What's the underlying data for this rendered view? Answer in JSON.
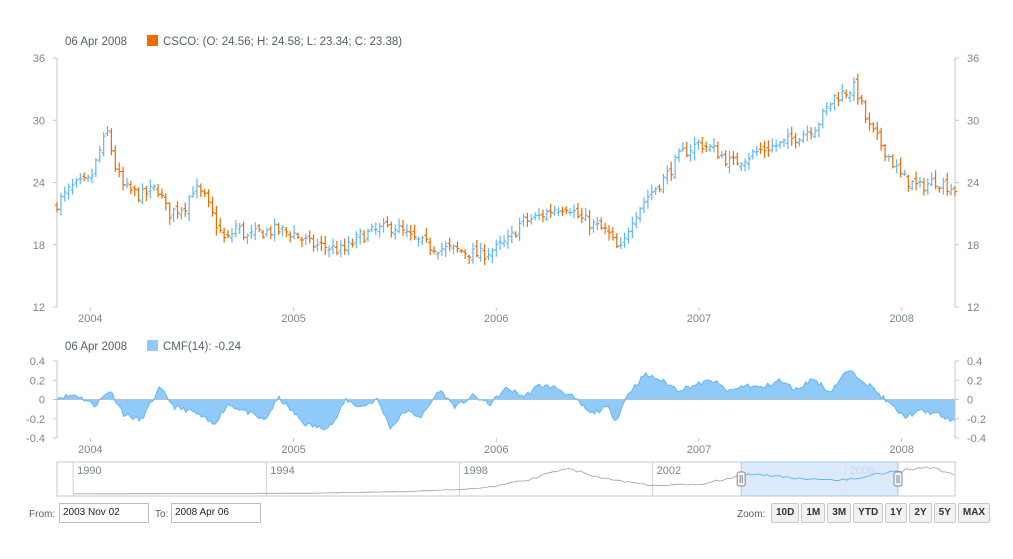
{
  "chart_data": [
    {
      "type": "ohlc",
      "legend": {
        "date": "06 Apr 2008",
        "text": "CSCO: (O: 24.56; H: 24.58; L: 23.34; C: 23.38)"
      },
      "colors": {
        "rising": "#64b5f6",
        "falling": "#ef6c00"
      },
      "ylim": [
        12,
        36
      ],
      "yticks": [
        "36",
        "30",
        "24",
        "18",
        "12"
      ],
      "xticks": [
        {
          "label": "2004",
          "date": "2004-01-01"
        },
        {
          "label": "2005",
          "date": "2005-01-01"
        },
        {
          "label": "2006",
          "date": "2006-01-01"
        },
        {
          "label": "2007",
          "date": "2007-01-01"
        },
        {
          "label": "2008",
          "date": "2008-01-01"
        }
      ],
      "xrange": [
        "2003-11-02",
        "2008-04-06"
      ],
      "close_trend": [
        [
          "2003-11-02",
          22.0
        ],
        [
          "2003-12-01",
          23.6
        ],
        [
          "2004-01-01",
          24.2
        ],
        [
          "2004-01-20",
          27.4
        ],
        [
          "2004-02-01",
          28.8
        ],
        [
          "2004-02-15",
          25.5
        ],
        [
          "2004-03-01",
          23.5
        ],
        [
          "2004-04-01",
          22.7
        ],
        [
          "2004-05-01",
          23.5
        ],
        [
          "2004-05-20",
          21.0
        ],
        [
          "2004-06-20",
          21.8
        ],
        [
          "2004-07-05",
          23.5
        ],
        [
          "2004-07-25",
          22.5
        ],
        [
          "2004-08-15",
          20.0
        ],
        [
          "2004-09-01",
          18.2
        ],
        [
          "2004-09-20",
          19.8
        ],
        [
          "2004-10-10",
          18.7
        ],
        [
          "2004-11-01",
          19.2
        ],
        [
          "2004-12-01",
          19.4
        ],
        [
          "2005-01-01",
          19.1
        ],
        [
          "2005-02-01",
          18.0
        ],
        [
          "2005-03-01",
          17.8
        ],
        [
          "2005-04-01",
          17.4
        ],
        [
          "2005-05-01",
          18.8
        ],
        [
          "2005-06-01",
          19.4
        ],
        [
          "2005-07-01",
          19.8
        ],
        [
          "2005-08-01",
          18.6
        ],
        [
          "2005-09-01",
          17.9
        ],
        [
          "2005-10-01",
          17.6
        ],
        [
          "2005-11-01",
          17.4
        ],
        [
          "2005-12-01",
          17.0
        ],
        [
          "2006-01-01",
          17.6
        ],
        [
          "2006-01-25",
          18.5
        ],
        [
          "2006-02-15",
          20.2
        ],
        [
          "2006-03-15",
          20.6
        ],
        [
          "2006-04-15",
          21.5
        ],
        [
          "2006-05-10",
          21.8
        ],
        [
          "2006-06-01",
          20.5
        ],
        [
          "2006-06-25",
          19.9
        ],
        [
          "2006-07-20",
          19.2
        ],
        [
          "2006-08-05",
          17.7
        ],
        [
          "2006-08-15",
          17.5
        ],
        [
          "2006-09-01",
          20.5
        ],
        [
          "2006-10-01",
          22.7
        ],
        [
          "2006-11-01",
          24.5
        ],
        [
          "2006-12-01",
          26.8
        ],
        [
          "2007-01-01",
          27.8
        ],
        [
          "2007-02-01",
          27.0
        ],
        [
          "2007-03-01",
          25.8
        ],
        [
          "2007-04-01",
          26.6
        ],
        [
          "2007-05-01",
          27.3
        ],
        [
          "2007-06-01",
          27.7
        ],
        [
          "2007-07-01",
          28.6
        ],
        [
          "2007-08-01",
          29.5
        ],
        [
          "2007-09-01",
          32.2
        ],
        [
          "2007-10-10",
          33.2
        ],
        [
          "2007-11-01",
          29.5
        ],
        [
          "2007-12-01",
          27.2
        ],
        [
          "2008-01-01",
          24.5
        ],
        [
          "2008-02-01",
          23.5
        ],
        [
          "2008-03-01",
          24.2
        ],
        [
          "2008-04-06",
          23.38
        ]
      ]
    },
    {
      "type": "area",
      "legend": {
        "date": "06 Apr 2008",
        "text": "CMF(14): -0.24"
      },
      "color": "#90caf9",
      "ylim": [
        -0.4,
        0.4
      ],
      "yticks": [
        "0.4",
        "0.2",
        "0",
        "-0.2",
        "-0.4"
      ],
      "xticks": [
        {
          "label": "2004",
          "date": "2004-01-01"
        },
        {
          "label": "2005",
          "date": "2005-01-01"
        },
        {
          "label": "2006",
          "date": "2006-01-01"
        },
        {
          "label": "2007",
          "date": "2007-01-01"
        },
        {
          "label": "2008",
          "date": "2008-01-01"
        }
      ],
      "cmf_trend": [
        [
          "2003-11-02",
          0.02
        ],
        [
          "2003-12-05",
          0.05
        ],
        [
          "2004-01-10",
          -0.06
        ],
        [
          "2004-02-05",
          0.1
        ],
        [
          "2004-03-01",
          -0.15
        ],
        [
          "2004-04-01",
          -0.22
        ],
        [
          "2004-05-05",
          0.12
        ],
        [
          "2004-06-01",
          -0.08
        ],
        [
          "2004-07-05",
          -0.13
        ],
        [
          "2004-08-10",
          -0.26
        ],
        [
          "2004-09-05",
          -0.05
        ],
        [
          "2004-10-05",
          -0.12
        ],
        [
          "2004-11-10",
          -0.22
        ],
        [
          "2004-12-05",
          0.02
        ],
        [
          "2005-01-20",
          -0.25
        ],
        [
          "2005-02-20",
          -0.3
        ],
        [
          "2005-03-15",
          -0.24
        ],
        [
          "2005-04-05",
          0.0
        ],
        [
          "2005-05-01",
          -0.08
        ],
        [
          "2005-06-01",
          0.0
        ],
        [
          "2005-06-25",
          -0.3
        ],
        [
          "2005-07-20",
          -0.12
        ],
        [
          "2005-08-20",
          -0.18
        ],
        [
          "2005-09-20",
          0.1
        ],
        [
          "2005-10-20",
          -0.08
        ],
        [
          "2005-11-20",
          0.04
        ],
        [
          "2005-12-20",
          -0.05
        ],
        [
          "2006-01-20",
          0.12
        ],
        [
          "2006-02-20",
          0.03
        ],
        [
          "2006-03-20",
          0.15
        ],
        [
          "2006-04-20",
          0.12
        ],
        [
          "2006-05-20",
          0.02
        ],
        [
          "2006-06-20",
          -0.15
        ],
        [
          "2006-07-20",
          -0.08
        ],
        [
          "2006-08-05",
          -0.22
        ],
        [
          "2006-08-25",
          0.05
        ],
        [
          "2006-09-25",
          0.26
        ],
        [
          "2006-10-25",
          0.2
        ],
        [
          "2006-11-25",
          0.1
        ],
        [
          "2006-12-25",
          0.15
        ],
        [
          "2007-01-25",
          0.2
        ],
        [
          "2007-02-25",
          0.08
        ],
        [
          "2007-03-25",
          0.15
        ],
        [
          "2007-04-25",
          0.12
        ],
        [
          "2007-05-25",
          0.2
        ],
        [
          "2007-06-25",
          0.1
        ],
        [
          "2007-07-25",
          0.22
        ],
        [
          "2007-08-25",
          0.08
        ],
        [
          "2007-09-25",
          0.3
        ],
        [
          "2007-10-20",
          0.22
        ],
        [
          "2007-11-10",
          0.12
        ],
        [
          "2007-12-05",
          -0.02
        ],
        [
          "2008-01-05",
          -0.18
        ],
        [
          "2008-02-05",
          -0.12
        ],
        [
          "2008-03-05",
          -0.15
        ],
        [
          "2008-04-06",
          -0.24
        ]
      ]
    }
  ],
  "scroller": {
    "labels": [
      "1990",
      "1994",
      "1998",
      "2002",
      "2006"
    ],
    "handle_color": "#d6e6fa",
    "selection": [
      "2003-11-02",
      "2008-04-06"
    ]
  },
  "range_selector": {
    "from_label": "From:",
    "from_value": "2003 Nov 02",
    "to_label": "To:",
    "to_value": "2008 Apr 06",
    "zoom_label": "Zoom:",
    "buttons": [
      "10D",
      "1M",
      "3M",
      "YTD",
      "1Y",
      "2Y",
      "5Y",
      "MAX"
    ]
  }
}
